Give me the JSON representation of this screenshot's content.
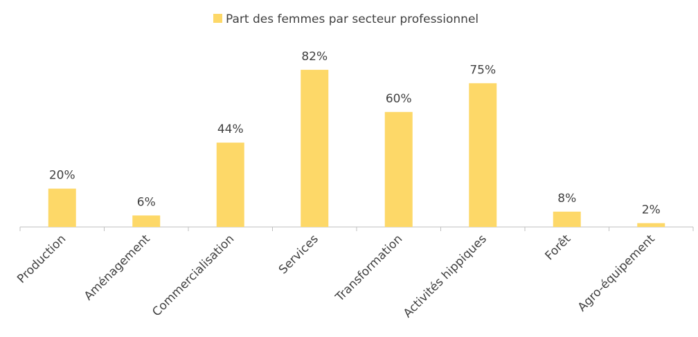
{
  "chart_data": {
    "type": "bar",
    "categories": [
      "Production",
      "Aménagement",
      "Commercialisation",
      "Services",
      "Transformation",
      "Activités hippiques",
      "Forêt",
      "Agro-équipement"
    ],
    "series": [
      {
        "name": "Part des femmes par secteur professionnel",
        "color": "#fdd868",
        "values": [
          20,
          6,
          44,
          82,
          60,
          75,
          8,
          2
        ],
        "value_labels": [
          "20%",
          "6%",
          "44%",
          "82%",
          "60%",
          "75%",
          "8%",
          "2%"
        ]
      }
    ]
  }
}
